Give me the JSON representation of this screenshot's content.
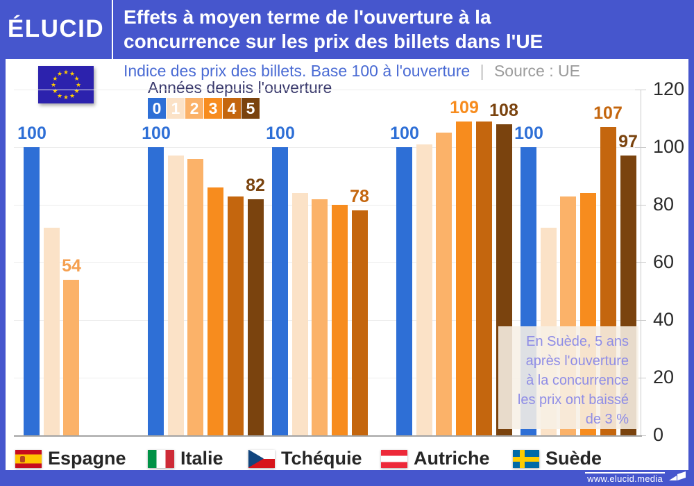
{
  "header": {
    "logo": "ÉLUCID",
    "title_lines": [
      "Effets à moyen terme de l'ouverture à la",
      "concurrence sur les prix des billets dans l'UE"
    ]
  },
  "subtitle": {
    "text": "Indice des prix des billets. Base 100 à l'ouverture",
    "separator": "|",
    "source": "Source : UE"
  },
  "legend": {
    "title": "Années depuis l'ouverture",
    "items": [
      "0",
      "1",
      "2",
      "3",
      "4",
      "5"
    ]
  },
  "chart_data": {
    "type": "bar",
    "title": "Effets à moyen terme de l'ouverture à la concurrence sur les prix des billets dans l'UE",
    "ylabel": "Indice des prix des billets (base 100 à l'ouverture)",
    "categories": [
      "Espagne",
      "Italie",
      "Tchéquie",
      "Autriche",
      "Suède"
    ],
    "series": [
      {
        "name": "0",
        "values": [
          100,
          100,
          100,
          100,
          100
        ]
      },
      {
        "name": "1",
        "values": [
          72,
          97,
          84,
          101,
          72
        ]
      },
      {
        "name": "2",
        "values": [
          54,
          96,
          82,
          105,
          83
        ]
      },
      {
        "name": "3",
        "values": [
          null,
          86,
          80,
          109,
          84
        ]
      },
      {
        "name": "4",
        "values": [
          null,
          83,
          78,
          109,
          107
        ]
      },
      {
        "name": "5",
        "values": [
          null,
          82,
          null,
          108,
          97
        ]
      }
    ],
    "colors": [
      "#2e6fd6",
      "#fbe2c7",
      "#fbb269",
      "#f78c1e",
      "#c4660e",
      "#7a430e"
    ],
    "value_labels": [
      {
        "category": 0,
        "year": 0,
        "text": "100",
        "color": "#2e6fd6"
      },
      {
        "category": 0,
        "year": 2,
        "text": "54",
        "color": "#f5a050"
      },
      {
        "category": 1,
        "year": 0,
        "text": "100",
        "color": "#2e6fd6"
      },
      {
        "category": 1,
        "year": 5,
        "text": "82",
        "color": "#7a430e"
      },
      {
        "category": 2,
        "year": 0,
        "text": "100",
        "color": "#2e6fd6"
      },
      {
        "category": 2,
        "year": 4,
        "text": "78",
        "color": "#c4660e"
      },
      {
        "category": 3,
        "year": 0,
        "text": "100",
        "color": "#2e6fd6"
      },
      {
        "category": 3,
        "year": 3,
        "text": "109",
        "color": "#f78c1e"
      },
      {
        "category": 3,
        "year": 5,
        "text": "108",
        "color": "#7a430e"
      },
      {
        "category": 4,
        "year": 0,
        "text": "100",
        "color": "#2e6fd6"
      },
      {
        "category": 4,
        "year": 4,
        "text": "107",
        "color": "#c4660e"
      },
      {
        "category": 4,
        "year": 5,
        "text": "97",
        "color": "#7a430e"
      }
    ],
    "ylim": [
      0,
      120
    ],
    "yticks": [
      120,
      100,
      80,
      60,
      40,
      20,
      0
    ],
    "grid": true,
    "axis_side": "right"
  },
  "annotation": {
    "lines": [
      "En Suède, 5 ans",
      "après l'ouverture",
      "à la concurrence",
      "les prix ont baissé",
      "de 3 %"
    ]
  },
  "countries": [
    "Espagne",
    "Italie",
    "Tchéquie",
    "Autriche",
    "Suède"
  ],
  "footer": {
    "url": "www.elucid.media"
  },
  "colors": {
    "brand_blue": "#4656cd",
    "subtitle_blue": "#4a6bd4",
    "annotation_text": "#8f8de6"
  }
}
